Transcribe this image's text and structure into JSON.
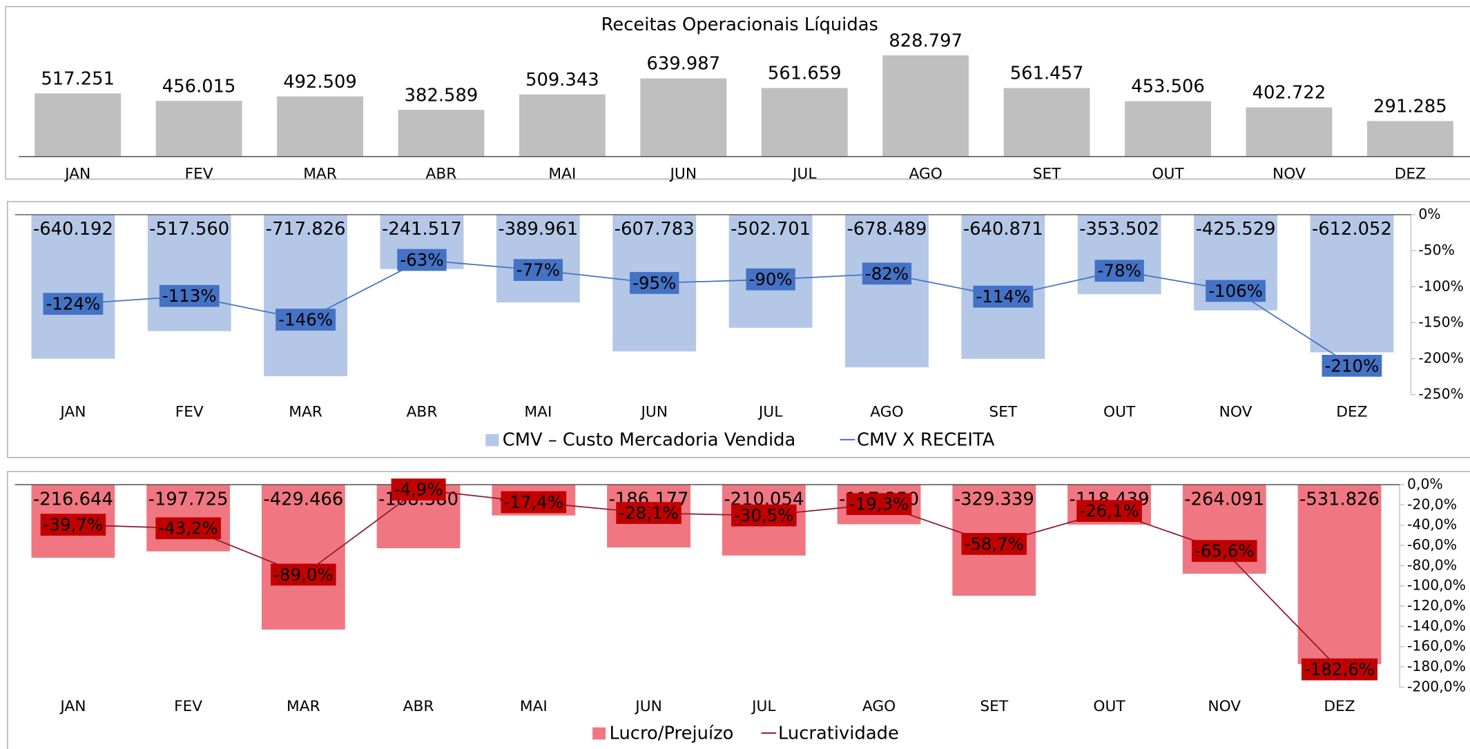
{
  "chart_data": [
    {
      "type": "bar",
      "title": "Receitas Operacionais Líquidas",
      "categories": [
        "JAN",
        "FEV",
        "MAR",
        "ABR",
        "MAI",
        "JUN",
        "JUL",
        "AGO",
        "SET",
        "OUT",
        "NOV",
        "DEZ"
      ],
      "values": [
        517251,
        456015,
        492509,
        382589,
        509343,
        639987,
        561659,
        828797,
        561457,
        453506,
        402722,
        291285
      ],
      "value_labels": [
        "517.251",
        "456.015",
        "492.509",
        "382.589",
        "509.343",
        "639.987",
        "561.659",
        "828.797",
        "561.457",
        "453.506",
        "402.722",
        "291.285"
      ],
      "color": "#bfbfbf"
    },
    {
      "type": "combo",
      "categories": [
        "JAN",
        "FEV",
        "MAR",
        "ABR",
        "MAI",
        "JUN",
        "JUL",
        "AGO",
        "SET",
        "OUT",
        "NOV",
        "DEZ"
      ],
      "ylim": [
        -800000,
        0
      ],
      "y2lim": [
        -250,
        0
      ],
      "y2ticks": [
        {
          "value": 0,
          "label": "0%"
        },
        {
          "value": -50,
          "label": "-50%"
        },
        {
          "value": -100,
          "label": "-100%"
        },
        {
          "value": -150,
          "label": "-150%"
        },
        {
          "value": -200,
          "label": "-200%"
        },
        {
          "value": -250,
          "label": "-250%"
        }
      ],
      "legend": "bottom",
      "series": [
        {
          "name": "CMV – Custo Mercadoria Vendida",
          "kind": "bar",
          "color": "#b4c7e7",
          "values": [
            -640192,
            -517560,
            -717826,
            -241517,
            -389961,
            -607783,
            -502701,
            -678489,
            -640871,
            -353502,
            -425529,
            -612052
          ],
          "value_labels": [
            "-640.192",
            "-517.560",
            "-717.826",
            "-241.517",
            "-389.961",
            "-607.783",
            "-502.701",
            "-678.489",
            "-640.871",
            "-353.502",
            "-425.529",
            "-612.052"
          ]
        },
        {
          "name": "CMV X RECEITA",
          "kind": "line",
          "axis": "y2",
          "color": "#4472c4",
          "values": [
            -124,
            -113,
            -146,
            -63,
            -77,
            -95,
            -90,
            -82,
            -114,
            -78,
            -106,
            -210
          ],
          "value_labels": [
            "-124%",
            "-113%",
            "-146%",
            "-63%",
            "-77%",
            "-95%",
            "-90%",
            "-82%",
            "-114%",
            "-78%",
            "-106%",
            "-210%"
          ]
        }
      ]
    },
    {
      "type": "combo",
      "categories": [
        "JAN",
        "FEV",
        "MAR",
        "ABR",
        "MAI",
        "JUN",
        "JUL",
        "AGO",
        "SET",
        "OUT",
        "NOV",
        "DEZ"
      ],
      "ylim": [
        -600000,
        0
      ],
      "y2lim": [
        -200,
        0
      ],
      "y2ticks": [
        {
          "value": 0,
          "label": "0,0%"
        },
        {
          "value": -20,
          "label": "-20,0%"
        },
        {
          "value": -40,
          "label": "-40,0%"
        },
        {
          "value": -60,
          "label": "-60,0%"
        },
        {
          "value": -80,
          "label": "-80,0%"
        },
        {
          "value": -100,
          "label": "-100,0%"
        },
        {
          "value": -120,
          "label": "-120,0%"
        },
        {
          "value": -140,
          "label": "-140,0%"
        },
        {
          "value": -160,
          "label": "-160,0%"
        },
        {
          "value": -180,
          "label": "-180,0%"
        },
        {
          "value": -200,
          "label": "-200,0%"
        }
      ],
      "legend": "bottom",
      "series": [
        {
          "name": "Lucro/Prejuízo",
          "kind": "bar",
          "color": "#f07781",
          "values": [
            -216644,
            -197725,
            -429466,
            -188380,
            -91412,
            -186177,
            -210054,
            -117350,
            -329339,
            -118439,
            -264091,
            -531826
          ],
          "value_labels": [
            "-216.644",
            "-197.725",
            "-429.466",
            "-188.380",
            "-91.412",
            "-186.177",
            "-210.054",
            "-117.350",
            "-329.339",
            "-118.439",
            "-264.091",
            "-531.826"
          ]
        },
        {
          "name": "Lucratividade",
          "kind": "line",
          "axis": "y2",
          "color": "#8b1a2b",
          "label_color": "#c00000",
          "values": [
            -39.7,
            -43.2,
            -89.0,
            -4.9,
            -17.4,
            -28.1,
            -30.5,
            -19.3,
            -58.7,
            -26.1,
            -65.6,
            -182.6
          ],
          "value_labels": [
            "-39,7%",
            "-43,2%",
            "-89,0%",
            "-4,9%",
            "-17,4%",
            "-28,1%",
            "-30,5%",
            "-19,3%",
            "-58,7%",
            "-26,1%",
            "-65,6%",
            "-182,6%"
          ]
        }
      ]
    }
  ]
}
